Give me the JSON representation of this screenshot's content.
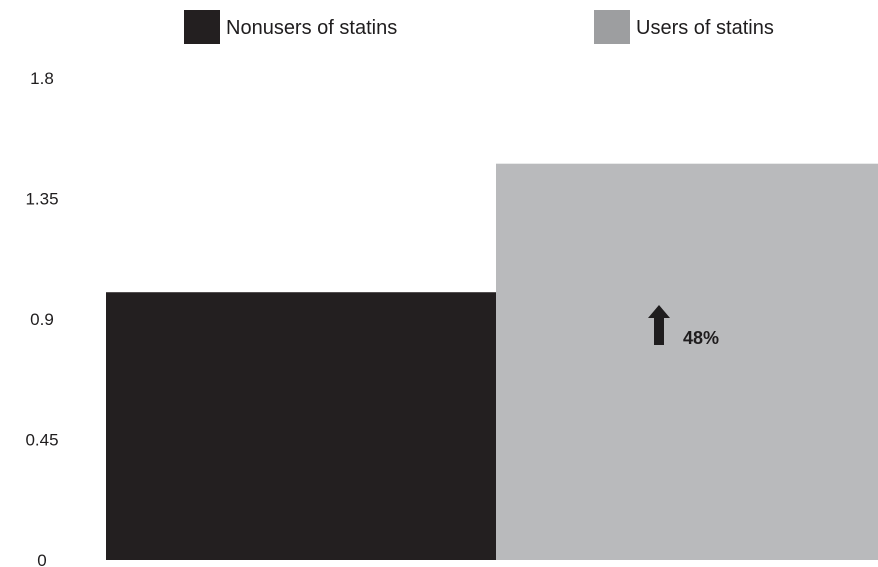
{
  "chart_data": {
    "type": "bar",
    "categories": [
      "Nonusers of statins",
      "Users of statins"
    ],
    "values": [
      1.0,
      1.48
    ],
    "legend": {
      "placement": "top",
      "entries": [
        {
          "label": "Nonusers of statins",
          "color": "#231f20"
        },
        {
          "label": "Users of statins",
          "color": "#b9babc",
          "swatch_color": "#9d9ea0"
        }
      ]
    },
    "ylim": [
      0,
      1.8
    ],
    "yticks": [
      {
        "value": 0,
        "label": "0"
      },
      {
        "value": 0.45,
        "label": "0.45"
      },
      {
        "value": 0.9,
        "label": "0.9"
      },
      {
        "value": 1.35,
        "label": "1.35"
      },
      {
        "value": 1.8,
        "label": "1.8"
      }
    ],
    "annotation": {
      "text": "48%",
      "icon": "up-arrow-icon",
      "target_category": "Users of statins"
    },
    "title": "",
    "xlabel": "",
    "ylabel": "",
    "grid": false
  }
}
